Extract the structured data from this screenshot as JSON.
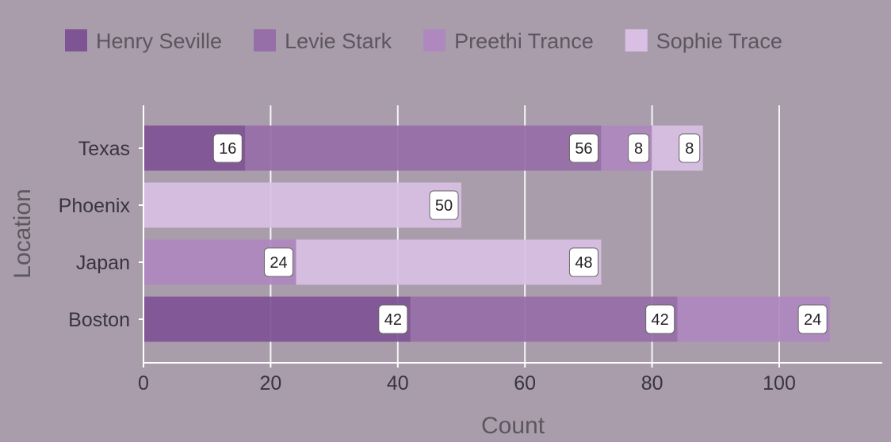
{
  "chart_data": {
    "type": "bar",
    "orientation": "horizontal",
    "stacked": true,
    "categories": [
      "Texas",
      "Phoenix",
      "Japan",
      "Boston"
    ],
    "series": [
      {
        "name": "Henry Seville",
        "values": [
          16,
          0,
          0,
          42
        ],
        "color": "#7f5494"
      },
      {
        "name": "Levie Stark",
        "values": [
          56,
          0,
          0,
          42
        ],
        "color": "#966ea8"
      },
      {
        "name": "Preethi Trance",
        "values": [
          8,
          0,
          24,
          24
        ],
        "color": "#ae88be"
      },
      {
        "name": "Sophie Trace",
        "values": [
          8,
          50,
          48,
          0
        ],
        "color": "#d8bfe3"
      }
    ],
    "data_labels": [
      {
        "category": "Texas",
        "series": "Henry Seville",
        "text": "16"
      },
      {
        "category": "Texas",
        "series": "Levie Stark",
        "text": "56"
      },
      {
        "category": "Texas",
        "series": "Preethi Trance",
        "text": "8"
      },
      {
        "category": "Texas",
        "series": "Sophie Trace",
        "text": "8"
      },
      {
        "category": "Phoenix",
        "series": "Sophie Trace",
        "text": "50"
      },
      {
        "category": "Japan",
        "series": "Preethi Trance",
        "text": "24"
      },
      {
        "category": "Japan",
        "series": "Sophie Trace",
        "text": "48"
      },
      {
        "category": "Boston",
        "series": "Henry Seville",
        "text": "42"
      },
      {
        "category": "Boston",
        "series": "Levie Stark",
        "text": "42"
      },
      {
        "category": "Boston",
        "series": "Preethi Trance",
        "text": "24"
      }
    ],
    "xlabel": "Count",
    "ylabel": "Location",
    "xlim": [
      0,
      116
    ],
    "xticks": [
      0,
      20,
      40,
      60,
      80,
      100
    ],
    "grid": true,
    "legend": "top"
  }
}
